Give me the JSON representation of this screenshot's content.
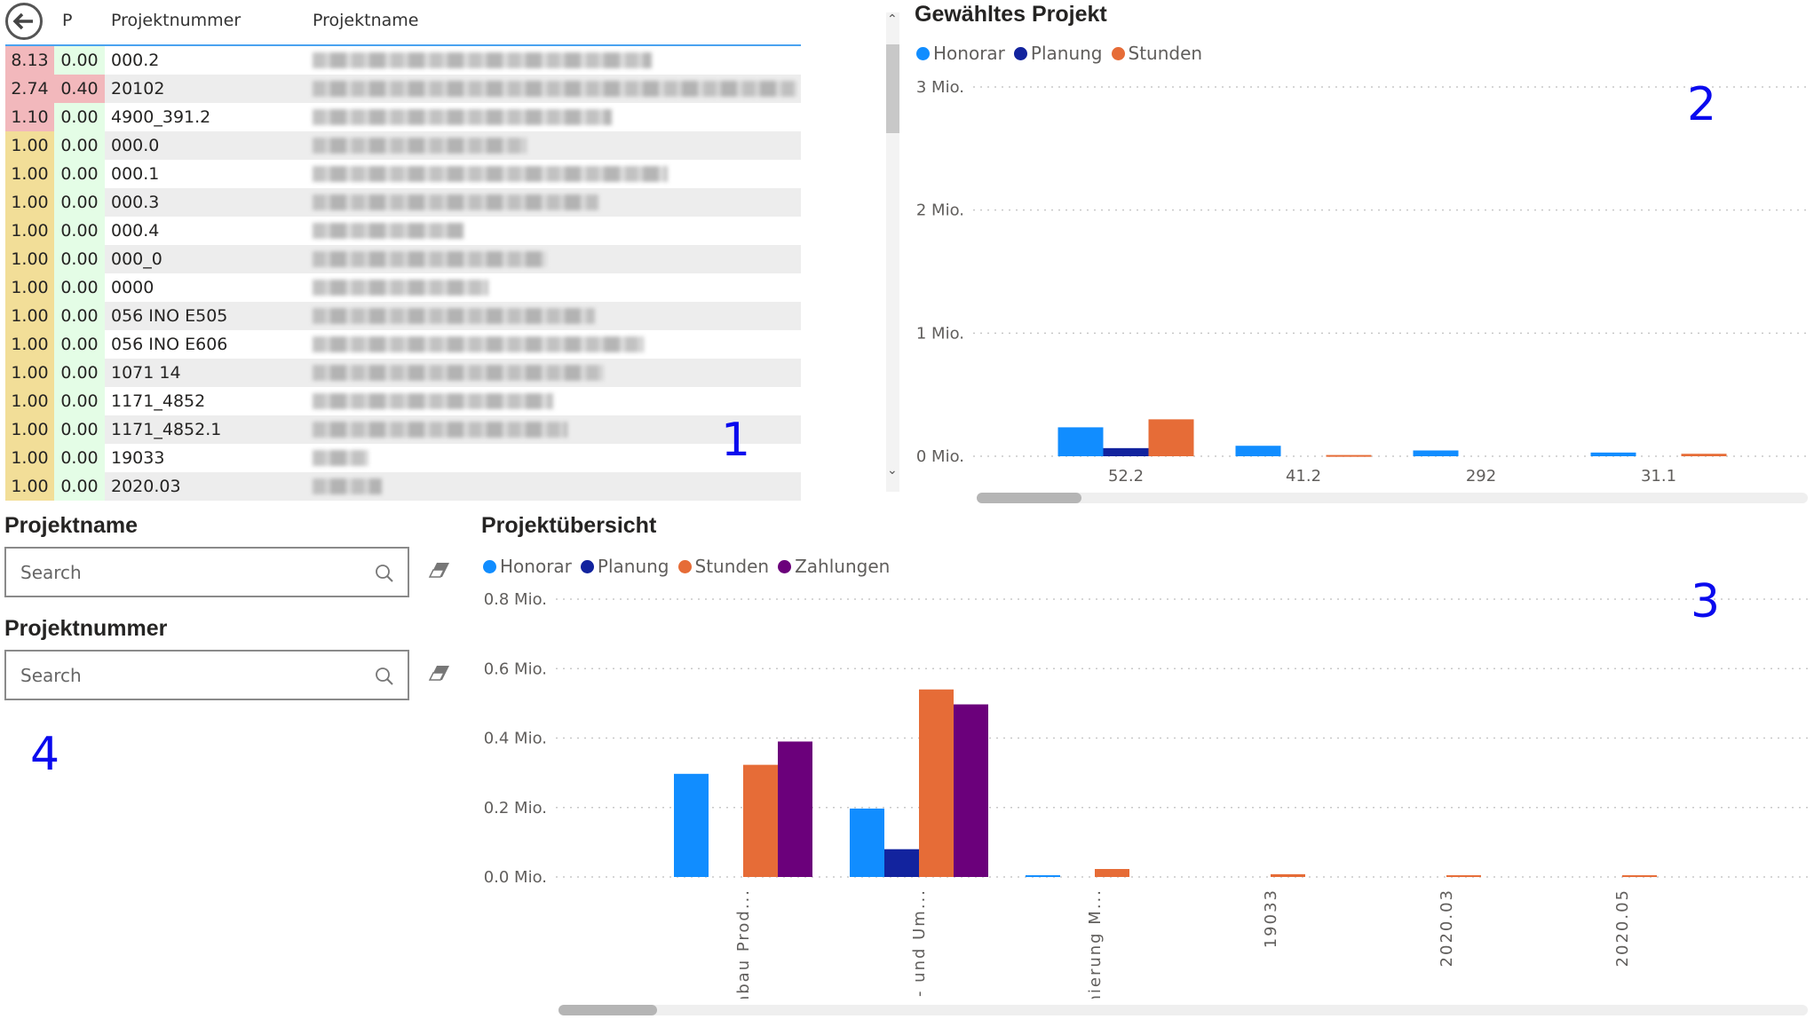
{
  "colors": {
    "honorar": "#118DFF",
    "planung": "#12239E",
    "stunden": "#E66C37",
    "zahlungen": "#6B007B",
    "cell_red": "#F2B8BC",
    "cell_yellow": "#F2DE98",
    "cell_green": "#E4FDE6"
  },
  "table": {
    "back_icon": "back-arrow-icon",
    "headers": [
      "",
      "P",
      "Projektnummer",
      "Projektname"
    ],
    "rows": [
      {
        "v1": "8.13",
        "v1_status": "red",
        "p": "0.00",
        "p_status": "green",
        "nr": "000.2"
      },
      {
        "v1": "2.74",
        "v1_status": "red",
        "p": "0.40",
        "p_status": "red",
        "nr": "20102"
      },
      {
        "v1": "1.10",
        "v1_status": "red",
        "p": "0.00",
        "p_status": "green",
        "nr": "4900_391.2"
      },
      {
        "v1": "1.00",
        "v1_status": "yellow",
        "p": "0.00",
        "p_status": "green",
        "nr": "000.0"
      },
      {
        "v1": "1.00",
        "v1_status": "yellow",
        "p": "0.00",
        "p_status": "green",
        "nr": "000.1"
      },
      {
        "v1": "1.00",
        "v1_status": "yellow",
        "p": "0.00",
        "p_status": "green",
        "nr": "000.3"
      },
      {
        "v1": "1.00",
        "v1_status": "yellow",
        "p": "0.00",
        "p_status": "green",
        "nr": "000.4"
      },
      {
        "v1": "1.00",
        "v1_status": "yellow",
        "p": "0.00",
        "p_status": "green",
        "nr": "000_0"
      },
      {
        "v1": "1.00",
        "v1_status": "yellow",
        "p": "0.00",
        "p_status": "green",
        "nr": "0000"
      },
      {
        "v1": "1.00",
        "v1_status": "yellow",
        "p": "0.00",
        "p_status": "green",
        "nr": "056 INO E505"
      },
      {
        "v1": "1.00",
        "v1_status": "yellow",
        "p": "0.00",
        "p_status": "green",
        "nr": "056 INO E606"
      },
      {
        "v1": "1.00",
        "v1_status": "yellow",
        "p": "0.00",
        "p_status": "green",
        "nr": "1071 14"
      },
      {
        "v1": "1.00",
        "v1_status": "yellow",
        "p": "0.00",
        "p_status": "green",
        "nr": "1171_4852"
      },
      {
        "v1": "1.00",
        "v1_status": "yellow",
        "p": "0.00",
        "p_status": "green",
        "nr": "1171_4852.1"
      },
      {
        "v1": "1.00",
        "v1_status": "yellow",
        "p": "0.00",
        "p_status": "green",
        "nr": "19033"
      },
      {
        "v1": "1.00",
        "v1_status": "yellow",
        "p": "0.00",
        "p_status": "green",
        "nr": "2020.03"
      }
    ]
  },
  "annotations": [
    "1",
    "2",
    "3",
    "4"
  ],
  "slicers": [
    {
      "label": "Projektname",
      "placeholder": "Search",
      "icon": "search-icon",
      "clear_icon": "eraser-icon"
    },
    {
      "label": "Projektnummer",
      "placeholder": "Search",
      "icon": "search-icon",
      "clear_icon": "eraser-icon"
    }
  ],
  "chart_data": [
    {
      "type": "bar",
      "title": "Gewähltes Projekt",
      "categories": [
        "52.2",
        "41.2",
        "292",
        "31.1"
      ],
      "series": [
        {
          "name": "Honorar",
          "values": [
            0.235,
            0.085,
            0.047,
            0.03
          ]
        },
        {
          "name": "Planung",
          "values": [
            0.066,
            0,
            0,
            0
          ]
        },
        {
          "name": "Stunden",
          "values": [
            0.3,
            0.01,
            0,
            0.02
          ]
        }
      ],
      "yticks": [
        "0 Mio.",
        "1 Mio.",
        "2 Mio.",
        "3 Mio."
      ],
      "ylim": [
        0,
        3
      ],
      "unit": "Mio.",
      "legend": "top-left",
      "grid": true
    },
    {
      "type": "bar",
      "title": "Projektübersicht",
      "categories": [
        "Umbau Prod...",
        "An- und Um...",
        "Sanierung M...",
        "19033",
        "2020.03",
        "2020.05"
      ],
      "series": [
        {
          "name": "Honorar",
          "values": [
            0.297,
            0.197,
            0.005,
            0,
            0,
            0
          ]
        },
        {
          "name": "Planung",
          "values": [
            0,
            0.08,
            0,
            0,
            0,
            0
          ]
        },
        {
          "name": "Stunden",
          "values": [
            0.323,
            0.54,
            0.023,
            0.008,
            0.005,
            0.005
          ]
        },
        {
          "name": "Zahlungen",
          "values": [
            0.39,
            0.497,
            0,
            0,
            0,
            0
          ]
        }
      ],
      "yticks": [
        "0.0 Mio.",
        "0.2 Mio.",
        "0.4 Mio.",
        "0.6 Mio.",
        "0.8 Mio."
      ],
      "ylim": [
        0,
        0.8
      ],
      "unit": "Mio.",
      "legend": "top-left",
      "grid": true,
      "xlabel_rotation": "vertical"
    }
  ]
}
